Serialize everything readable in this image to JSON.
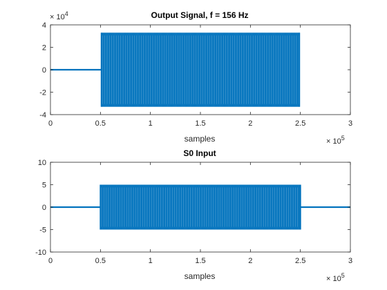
{
  "chart_data": [
    {
      "type": "line",
      "title": "Output Signal, f = 156 Hz",
      "xlabel": "samples",
      "ylabel": "",
      "xlim": [
        0,
        300000
      ],
      "ylim": [
        -40000,
        40000
      ],
      "xticks": [
        0,
        50000,
        100000,
        150000,
        200000,
        250000,
        300000
      ],
      "xtick_labels": [
        "0",
        "0.5",
        "1",
        "1.5",
        "2",
        "2.5",
        "3"
      ],
      "x_exponent_label": "× 10",
      "x_exponent": "5",
      "yticks": [
        -40000,
        -20000,
        0,
        20000,
        40000
      ],
      "ytick_labels": [
        "-4",
        "-2",
        "0",
        "2",
        "4"
      ],
      "y_exponent_label": "× 10",
      "y_exponent": "4",
      "color": "#0072BD",
      "grid": false,
      "series": [
        {
          "segments": [
            {
              "x": [
                0,
                51000
              ],
              "y": [
                0,
                0
              ],
              "style": "flat"
            },
            {
              "x_start": 51000,
              "x_end": 249000,
              "amplitude": 33000,
              "style": "oscillation"
            }
          ]
        }
      ]
    },
    {
      "type": "line",
      "title": "S0 Input",
      "xlabel": "samples",
      "ylabel": "",
      "xlim": [
        0,
        300000
      ],
      "ylim": [
        -10,
        10
      ],
      "xticks": [
        0,
        50000,
        100000,
        150000,
        200000,
        250000,
        300000
      ],
      "xtick_labels": [
        "0",
        "0.5",
        "1",
        "1.5",
        "2",
        "2.5",
        "3"
      ],
      "x_exponent_label": "× 10",
      "x_exponent": "5",
      "yticks": [
        -10,
        -5,
        0,
        5,
        10
      ],
      "ytick_labels": [
        "-10",
        "-5",
        "0",
        "5",
        "10"
      ],
      "color": "#0072BD",
      "grid": false,
      "series": [
        {
          "segments": [
            {
              "x": [
                0,
                50000
              ],
              "y": [
                0,
                0
              ],
              "style": "flat"
            },
            {
              "x_start": 50000,
              "x_end": 250000,
              "amplitude": 5,
              "style": "oscillation"
            },
            {
              "x": [
                250000,
                300000
              ],
              "y": [
                0,
                0
              ],
              "style": "flat"
            }
          ]
        }
      ]
    }
  ]
}
